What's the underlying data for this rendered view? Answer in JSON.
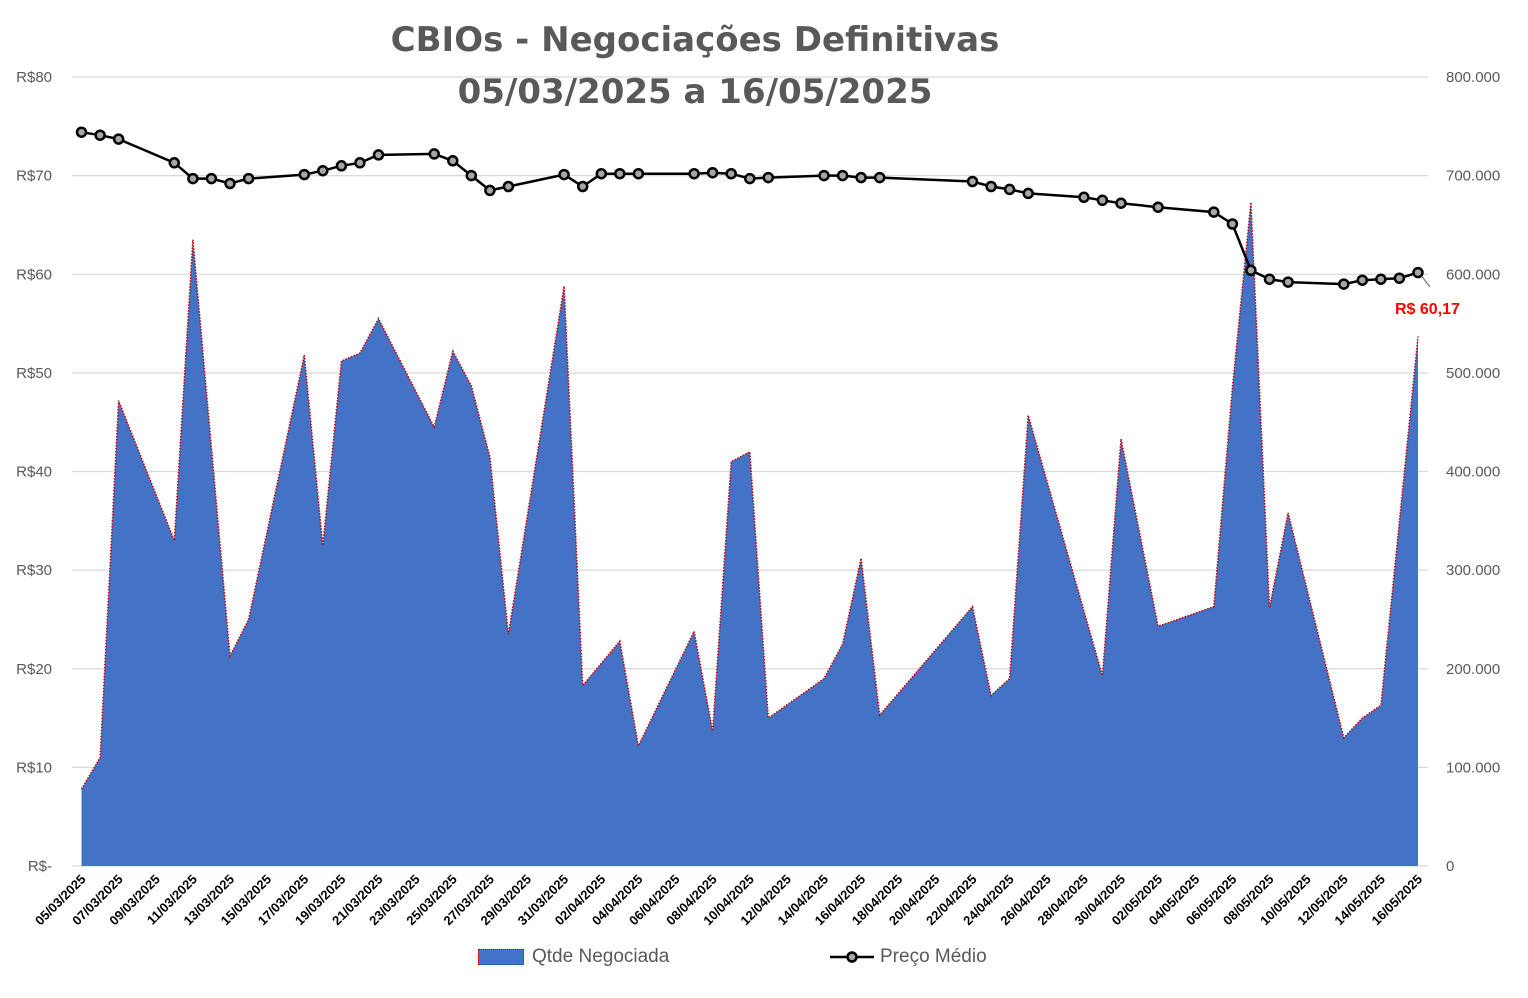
{
  "chart_data": {
    "type": "area+line",
    "title": "CBIOs - Negociações Definitivas",
    "subtitle": "05/03/2025 a 16/05/2025",
    "left_axis": {
      "ticks": [
        "R$-",
        "R$10",
        "R$20",
        "R$30",
        "R$40",
        "R$50",
        "R$60",
        "R$70",
        "R$80"
      ],
      "range": [
        0,
        80
      ]
    },
    "right_axis": {
      "ticks": [
        "0",
        "100.000",
        "200.000",
        "300.000",
        "400.000",
        "500.000",
        "600.000",
        "700.000",
        "800.000"
      ],
      "range": [
        0,
        800000
      ]
    },
    "x_range_days": [
      0,
      72
    ],
    "x_tick_labels": [
      "05/03/2025",
      "07/03/2025",
      "09/03/2025",
      "11/03/2025",
      "13/03/2025",
      "15/03/2025",
      "17/03/2025",
      "19/03/2025",
      "21/03/2025",
      "23/03/2025",
      "25/03/2025",
      "27/03/2025",
      "29/03/2025",
      "31/03/2025",
      "02/04/2025",
      "04/04/2025",
      "06/04/2025",
      "08/04/2025",
      "10/04/2025",
      "12/04/2025",
      "14/04/2025",
      "16/04/2025",
      "18/04/2025",
      "20/04/2025",
      "22/04/2025",
      "24/04/2025",
      "26/04/2025",
      "28/04/2025",
      "30/04/2025",
      "02/05/2025",
      "04/05/2025",
      "06/05/2025",
      "08/05/2025",
      "10/05/2025",
      "12/05/2025",
      "14/05/2025",
      "16/05/2025"
    ],
    "gridlines": true,
    "legend_position": "bottom",
    "series": [
      {
        "name": "Qtde Negociada",
        "kind": "area",
        "axis": "right",
        "color": "#4472C4",
        "outline_color": "#C00000",
        "points": [
          [
            0,
            78000
          ],
          [
            1,
            110000
          ],
          [
            2,
            472000
          ],
          [
            5,
            330000
          ],
          [
            6,
            635000
          ],
          [
            8,
            213000
          ],
          [
            9,
            250000
          ],
          [
            12,
            518000
          ],
          [
            13,
            325000
          ],
          [
            14,
            512000
          ],
          [
            15,
            520000
          ],
          [
            16,
            555000
          ],
          [
            19,
            445000
          ],
          [
            20,
            522000
          ],
          [
            21,
            487000
          ],
          [
            22,
            415000
          ],
          [
            23,
            235000
          ],
          [
            26,
            588000
          ],
          [
            27,
            183000
          ],
          [
            29,
            228000
          ],
          [
            30,
            122000
          ],
          [
            33,
            238000
          ],
          [
            34,
            137000
          ],
          [
            35,
            410000
          ],
          [
            36,
            420000
          ],
          [
            37,
            150000
          ],
          [
            40,
            190000
          ],
          [
            41,
            225000
          ],
          [
            42,
            312000
          ],
          [
            43,
            153000
          ],
          [
            48,
            263000
          ],
          [
            49,
            173000
          ],
          [
            50,
            190000
          ],
          [
            51,
            457000
          ],
          [
            55,
            193000
          ],
          [
            56,
            433000
          ],
          [
            58,
            243000
          ],
          [
            61,
            263000
          ],
          [
            62,
            485000
          ],
          [
            63,
            673000
          ],
          [
            64,
            262000
          ],
          [
            65,
            358000
          ],
          [
            68,
            130000
          ],
          [
            69,
            150000
          ],
          [
            70,
            163000
          ],
          [
            72,
            537000
          ]
        ]
      },
      {
        "name": "Preço Médio",
        "kind": "line",
        "axis": "left",
        "color": "#000000",
        "marker_fill": "#A6A6A6",
        "points": [
          [
            0,
            74.4
          ],
          [
            1,
            74.1
          ],
          [
            2,
            73.7
          ],
          [
            5,
            71.3
          ],
          [
            6,
            69.7
          ],
          [
            7,
            69.7
          ],
          [
            8,
            69.2
          ],
          [
            9,
            69.7
          ],
          [
            12,
            70.1
          ],
          [
            13,
            70.5
          ],
          [
            14,
            71.0
          ],
          [
            15,
            71.3
          ],
          [
            16,
            72.1
          ],
          [
            19,
            72.2
          ],
          [
            20,
            71.5
          ],
          [
            21,
            70.0
          ],
          [
            22,
            68.5
          ],
          [
            23,
            68.9
          ],
          [
            26,
            70.1
          ],
          [
            27,
            68.9
          ],
          [
            28,
            70.2
          ],
          [
            29,
            70.2
          ],
          [
            30,
            70.2
          ],
          [
            33,
            70.2
          ],
          [
            34,
            70.3
          ],
          [
            35,
            70.2
          ],
          [
            36,
            69.7
          ],
          [
            37,
            69.8
          ],
          [
            40,
            70.0
          ],
          [
            41,
            70.0
          ],
          [
            42,
            69.8
          ],
          [
            43,
            69.8
          ],
          [
            48,
            69.4
          ],
          [
            49,
            68.9
          ],
          [
            50,
            68.6
          ],
          [
            51,
            68.2
          ],
          [
            54,
            67.8
          ],
          [
            55,
            67.5
          ],
          [
            56,
            67.2
          ],
          [
            58,
            66.8
          ],
          [
            61,
            66.3
          ],
          [
            62,
            65.1
          ],
          [
            63,
            60.4
          ],
          [
            64,
            59.5
          ],
          [
            65,
            59.2
          ],
          [
            68,
            59.0
          ],
          [
            69,
            59.4
          ],
          [
            70,
            59.5
          ],
          [
            71,
            59.6
          ],
          [
            72,
            60.17
          ]
        ]
      }
    ],
    "annotation": {
      "text": "R$ 60,17",
      "color": "#FF0000"
    },
    "legend": {
      "area_label": "Qtde Negociada",
      "line_label": "Preço Médio"
    }
  }
}
